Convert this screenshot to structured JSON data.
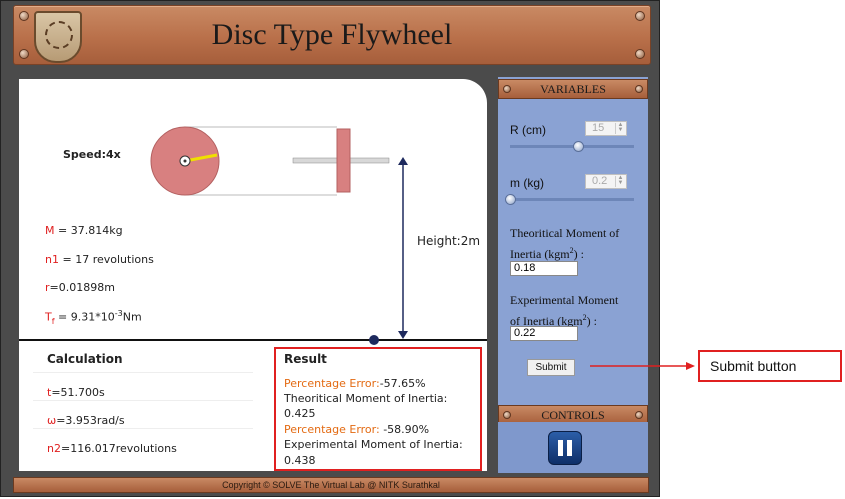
{
  "header": {
    "title": "Disc Type Flywheel"
  },
  "simulation": {
    "speed": "Speed:4x",
    "height": "Height:2m",
    "mass": "M = 37.814kg",
    "n1": "n1 = 17 revolutions",
    "r": "r=0.01898m",
    "tf": "Tf = 9.31*10-3Nm"
  },
  "calculation": {
    "heading": "Calculation",
    "t": "t=51.700s",
    "w": "ω=3.953rad/s",
    "n2": "n2=116.017revolutions"
  },
  "result": {
    "heading": "Result",
    "pe1_label": "Percentage Error:",
    "pe1_value": "-57.65%",
    "theoretical_label": "Theoritical Moment of Inertia:",
    "theoretical_value": "0.425",
    "pe2_label": "Percentage Error:",
    "pe2_value": "-58.90%",
    "experimental_label": "Experimental Moment of Inertia:",
    "experimental_value": "0.438"
  },
  "variables": {
    "heading": "VARIABLES",
    "r_label": "R (cm)",
    "r_value": "15",
    "r_slider_fraction": 0.55,
    "m_label": "m (kg)",
    "m_value": "0.2",
    "m_slider_fraction": 0.0,
    "theoretical_label_1": "Theoritical Moment of",
    "theoretical_label_2": "Inertia (kgm",
    "theoretical_label_sup": "2",
    "theoretical_label_end": ") :",
    "theoretical_input": "0.18",
    "experimental_label_1": "Experimental Moment",
    "experimental_label_2": "of Inertia (kgm",
    "experimental_label_sup": "2",
    "experimental_label_end": ") :",
    "experimental_input": "0.22",
    "submit_label": "Submit"
  },
  "controls": {
    "heading": "CONTROLS",
    "pause_icon": "pause-icon"
  },
  "footer": {
    "copyright": "Copyright © SOLVE The Virtual Lab @ NITK Surathkal"
  },
  "annotation": {
    "label": "Submit button",
    "color": "#e02020"
  },
  "colors": {
    "header": "#b9704a",
    "sidebar": "#8aa2d3",
    "disc": "#d88080",
    "accent_red": "#e02020"
  }
}
